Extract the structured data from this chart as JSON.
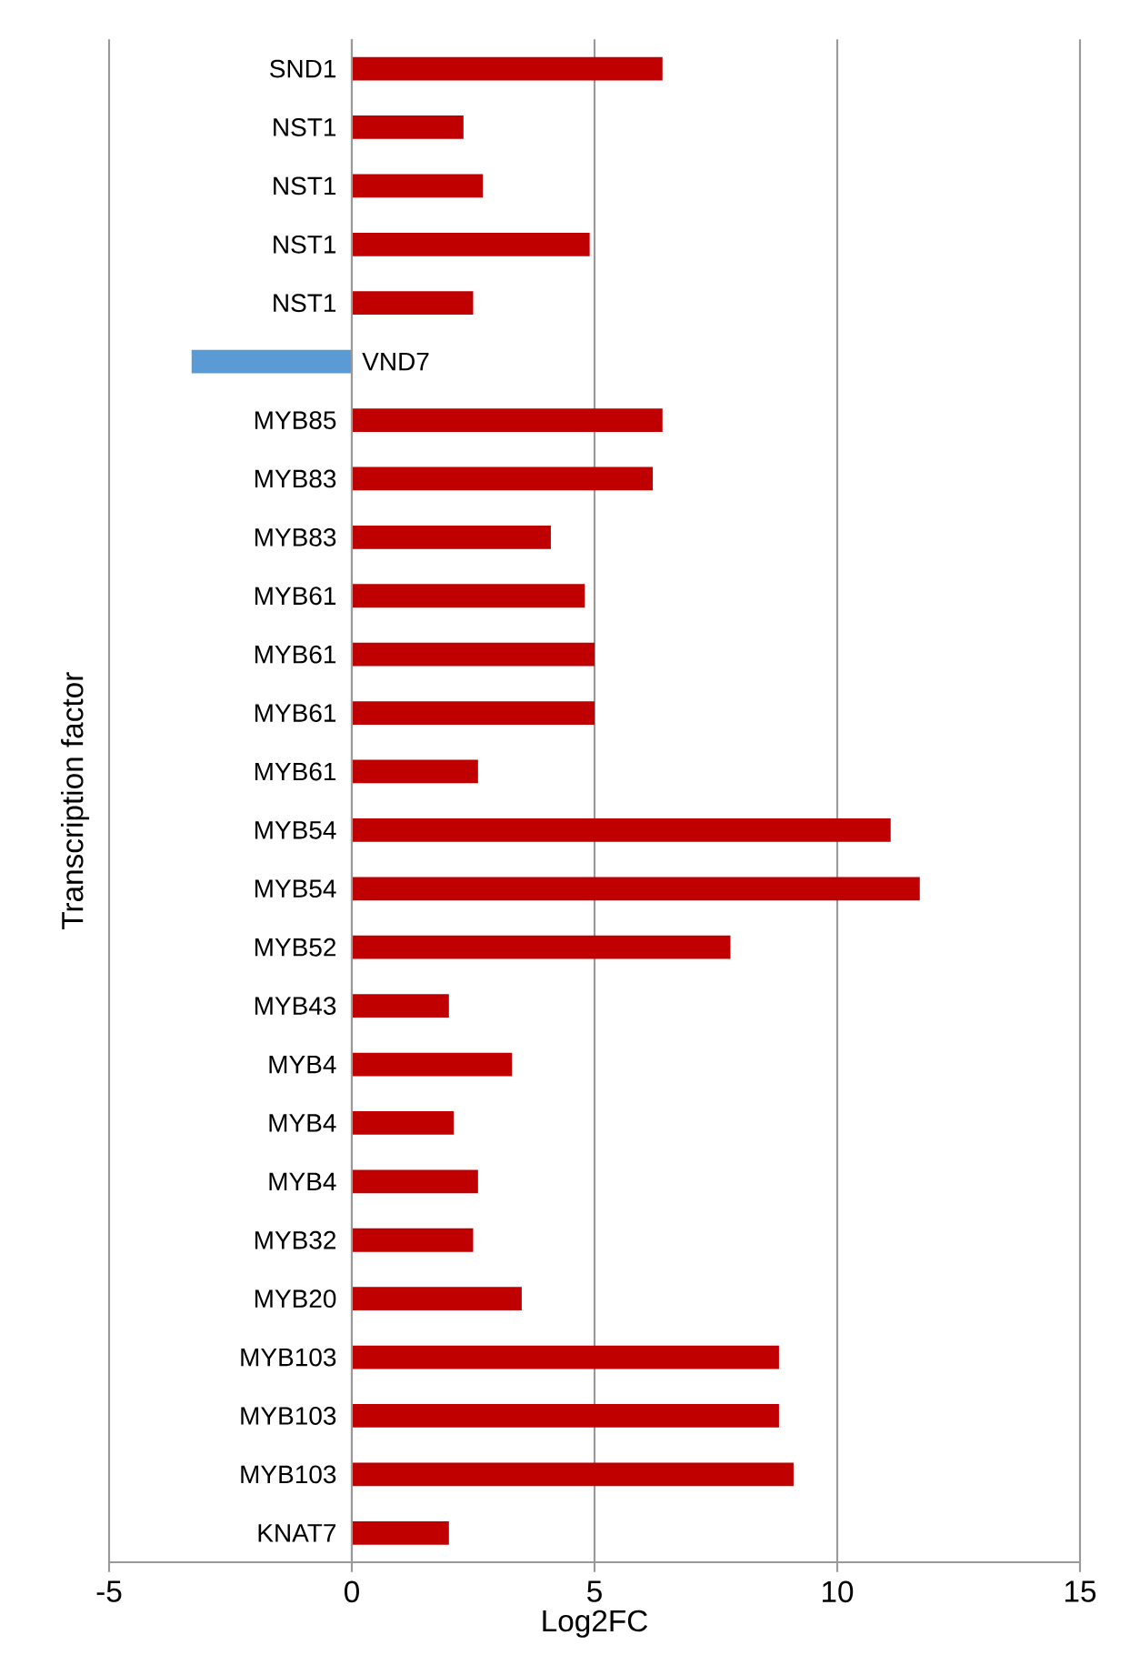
{
  "chart_data": {
    "type": "bar",
    "orientation": "horizontal",
    "xlabel": "Log2FC",
    "ylabel": "Transcription factor",
    "categories": [
      "SND1",
      "NST1",
      "NST1",
      "NST1",
      "NST1",
      "VND7",
      "MYB85",
      "MYB83",
      "MYB83",
      "MYB61",
      "MYB61",
      "MYB61",
      "MYB61",
      "MYB54",
      "MYB54",
      "MYB52",
      "MYB43",
      "MYB4",
      "MYB4",
      "MYB4",
      "MYB32",
      "MYB20",
      "MYB103",
      "MYB103",
      "MYB103",
      "KNAT7"
    ],
    "values": [
      6.4,
      2.3,
      2.7,
      4.9,
      2.5,
      -3.3,
      6.4,
      6.2,
      4.1,
      4.8,
      5.0,
      5.0,
      2.6,
      11.1,
      11.7,
      7.8,
      2.0,
      3.3,
      2.1,
      2.6,
      2.5,
      3.5,
      8.8,
      8.8,
      9.1,
      2.0
    ],
    "colors": [
      "#c00000",
      "#c00000",
      "#c00000",
      "#c00000",
      "#c00000",
      "#5b9bd5",
      "#c00000",
      "#c00000",
      "#c00000",
      "#c00000",
      "#c00000",
      "#c00000",
      "#c00000",
      "#c00000",
      "#c00000",
      "#c00000",
      "#c00000",
      "#c00000",
      "#c00000",
      "#c00000",
      "#c00000",
      "#c00000",
      "#c00000",
      "#c00000",
      "#c00000",
      "#c00000"
    ],
    "xlim": [
      -5,
      15
    ],
    "xticks": [
      -5,
      0,
      5,
      10,
      15
    ],
    "grid": "x"
  }
}
